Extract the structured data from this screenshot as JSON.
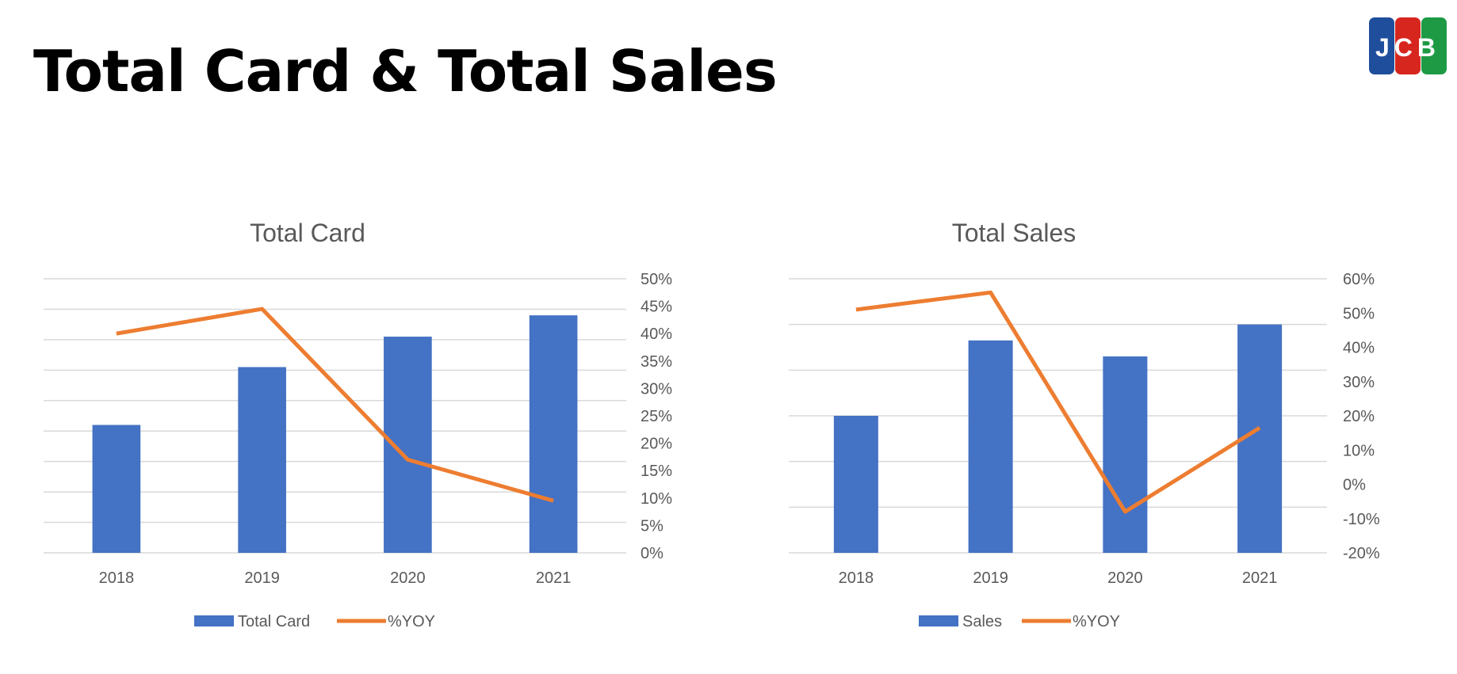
{
  "page": {
    "title": "Total Card & Total Sales",
    "logo_text": "JCB"
  },
  "colors": {
    "bar": "#4472C4",
    "line": "#ED7D31",
    "grid": "#D9D9D9",
    "text": "#595959",
    "logo_blue": "#1F4E9C",
    "logo_red": "#D7261E",
    "logo_green": "#1E9A45"
  },
  "chart_data": [
    {
      "type": "bar",
      "title": "Total Card",
      "categories": [
        "2018",
        "2019",
        "2020",
        "2021"
      ],
      "series": [
        {
          "name": "Total Card",
          "type": "bar",
          "axis": "left",
          "values": [
            4.2,
            6.1,
            7.1,
            7.8
          ]
        },
        {
          "name": "%YOY",
          "type": "line",
          "axis": "right",
          "values": [
            40,
            44.5,
            17,
            9.5
          ]
        }
      ],
      "left_axis": {
        "ylim": [
          0,
          9
        ],
        "ticks": 9,
        "labels_shown": false
      },
      "right_axis": {
        "ylim": [
          0,
          50
        ],
        "ticks": [
          0,
          5,
          10,
          15,
          20,
          25,
          30,
          35,
          40,
          45,
          50
        ],
        "tick_labels": [
          "0%",
          "5%",
          "10%",
          "15%",
          "20%",
          "25%",
          "30%",
          "35%",
          "40%",
          "45%",
          "50%"
        ]
      },
      "grid": true,
      "legend": "bottom"
    },
    {
      "type": "bar",
      "title": "Total Sales",
      "categories": [
        "2018",
        "2019",
        "2020",
        "2021"
      ],
      "series": [
        {
          "name": "Sales",
          "type": "bar",
          "axis": "left",
          "values": [
            3.0,
            4.65,
            4.3,
            5.0
          ]
        },
        {
          "name": "%YOY",
          "type": "line",
          "axis": "right",
          "values": [
            51,
            56,
            -8,
            16.5
          ]
        }
      ],
      "left_axis": {
        "ylim": [
          0,
          6
        ],
        "ticks": 6,
        "labels_shown": false
      },
      "right_axis": {
        "ylim": [
          -20,
          60
        ],
        "ticks": [
          -20,
          -10,
          0,
          10,
          20,
          30,
          40,
          50,
          60
        ],
        "tick_labels": [
          "-20%",
          "-10%",
          "0%",
          "10%",
          "20%",
          "30%",
          "40%",
          "50%",
          "60%"
        ]
      },
      "grid": true,
      "legend": "bottom"
    }
  ]
}
